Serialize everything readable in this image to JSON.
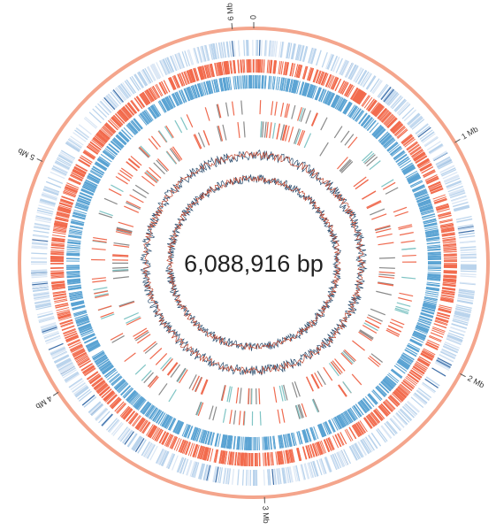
{
  "genome": {
    "total_bp": 6088916,
    "label": "6,088,916 bp"
  },
  "ticks": [
    {
      "value_mb": 0,
      "label": "0"
    },
    {
      "value_mb": 1,
      "label": "1 Mb"
    },
    {
      "value_mb": 2,
      "label": "2 Mb"
    },
    {
      "value_mb": 3,
      "label": "3 Mb"
    },
    {
      "value_mb": 4,
      "label": "4 Mb"
    },
    {
      "value_mb": 5,
      "label": "5 Mb"
    },
    {
      "value_mb": 6,
      "label": "6 Mb"
    }
  ],
  "colors": {
    "backbone": "#f4a58c",
    "outer_features": "#b9d3ec",
    "forward_cds": "#f26b4d",
    "reverse_cds": "#5aa3d3",
    "rna_red": "#ef6a4f",
    "rna_gray": "#8a8a8a",
    "rna_teal": "#7fc4c4",
    "gc_content": "#2a4d6e",
    "gc_skew": "#c0452d"
  },
  "tracks": [
    {
      "name": "outer-feature-track",
      "color_key": "outer_features"
    },
    {
      "name": "forward-cds-track",
      "color_key": "forward_cds"
    },
    {
      "name": "reverse-cds-track",
      "color_key": "reverse_cds"
    },
    {
      "name": "sparse-feature-track",
      "color_key": "rna_red"
    },
    {
      "name": "gc-content-track",
      "color_key": "gc_content"
    },
    {
      "name": "gc-skew-track",
      "color_key": "gc_skew"
    }
  ]
}
